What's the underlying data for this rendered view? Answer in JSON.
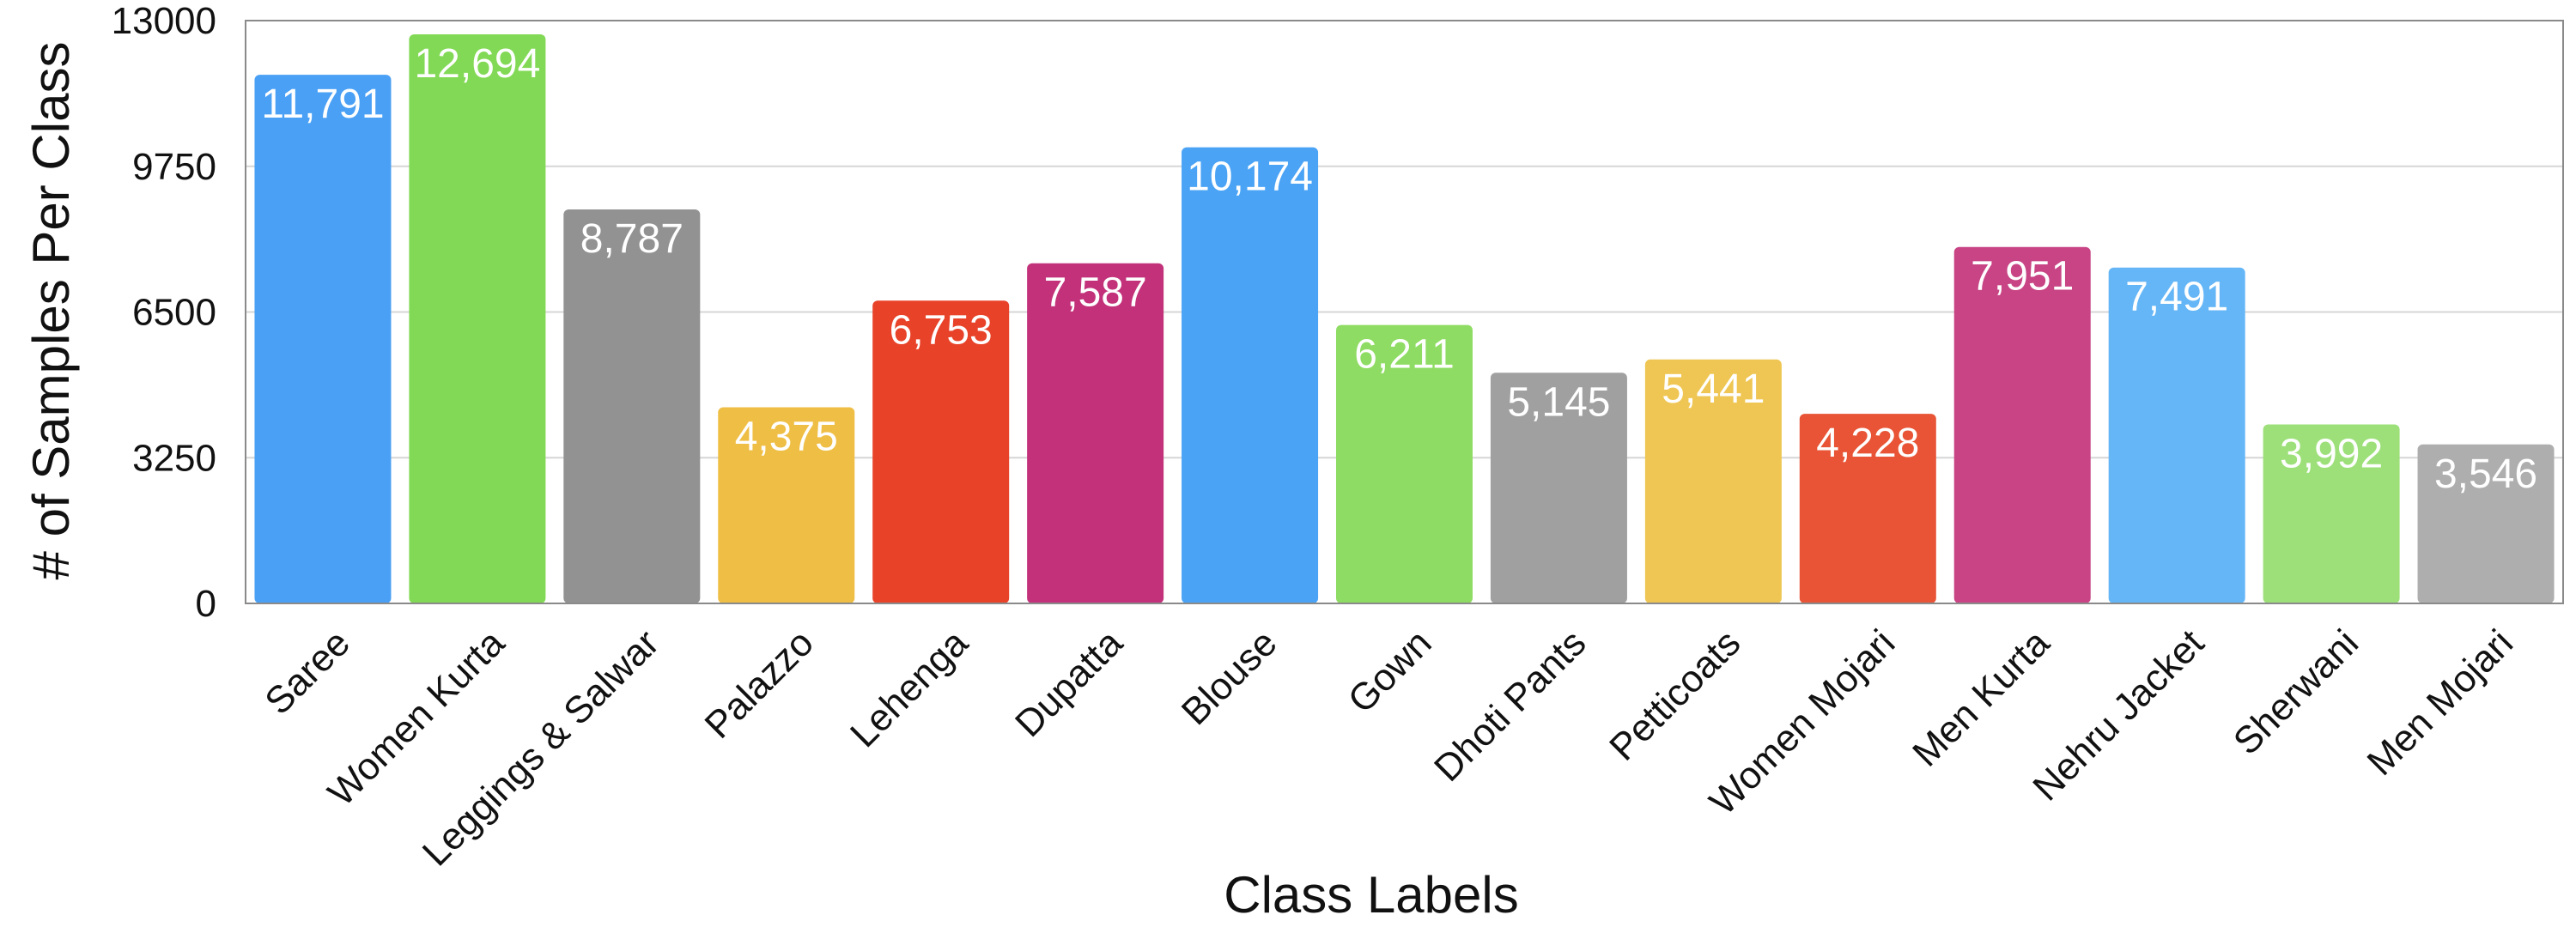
{
  "chart_data": {
    "type": "bar",
    "title": "",
    "xlabel": "Class Labels",
    "ylabel": "# of Samples Per Class",
    "ylim": [
      0,
      13000
    ],
    "yticks": [
      0,
      3250,
      6500,
      9750,
      13000
    ],
    "grid": true,
    "categories": [
      "Saree",
      "Women Kurta",
      "Leggings & Salwar",
      "Palazzo",
      "Lehenga",
      "Dupatta",
      "Blouse",
      "Gown",
      "Dhoti Pants",
      "Petticoats",
      "Women Mojari",
      "Men Kurta",
      "Nehru Jacket",
      "Sherwani",
      "Men Mojari"
    ],
    "values": [
      11791,
      12694,
      8787,
      4375,
      6753,
      7587,
      10174,
      6211,
      5145,
      5441,
      4228,
      7951,
      7491,
      3992,
      3546
    ],
    "value_labels": [
      "11,791",
      "12,694",
      "8,787",
      "4,375",
      "6,753",
      "7,587",
      "10,174",
      "6,211",
      "5,145",
      "5,441",
      "4,228",
      "7,951",
      "7,491",
      "3,992",
      "3,546"
    ],
    "colors": [
      "#4aa0f5",
      "#82d955",
      "#929292",
      "#efbe45",
      "#e84229",
      "#c2317a",
      "#4aa3f5",
      "#8edc63",
      "#a0a0a0",
      "#efc653",
      "#e85435",
      "#c84485",
      "#65b6f7",
      "#9de07a",
      "#aeaeae"
    ]
  }
}
